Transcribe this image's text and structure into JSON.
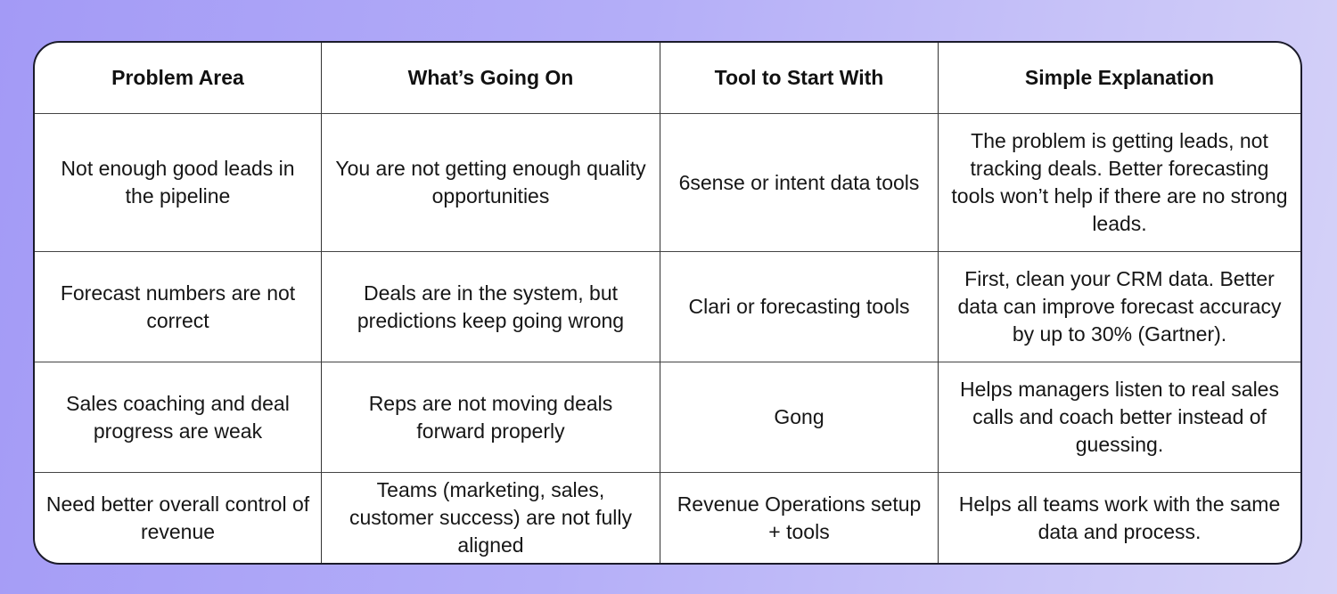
{
  "table": {
    "headers": [
      "Problem Area",
      "What’s Going On",
      "Tool to Start With",
      "Simple Explanation"
    ],
    "rows": [
      [
        "Not enough good leads in the pipeline",
        "You are not getting enough quality opportunities",
        "6sense or intent data tools",
        "The problem is getting leads, not tracking deals. Better forecasting tools won’t help if there are no strong leads."
      ],
      [
        "Forecast numbers are not correct",
        "Deals are in the system, but predictions keep going wrong",
        "Clari or forecasting tools",
        "First, clean your CRM data. Better data can improve forecast accuracy by up to 30% (Gartner)."
      ],
      [
        "Sales coaching and deal progress are weak",
        "Reps are not moving deals forward properly",
        "Gong",
        "Helps managers listen to real sales calls and coach better instead of guessing."
      ],
      [
        "Need better overall control of revenue",
        "Teams (marketing, sales, customer success) are not fully aligned",
        "Revenue Operations setup + tools",
        "Helps all teams work with the same data and process."
      ]
    ]
  },
  "colors": {
    "background_left": "#a39af6",
    "background_right": "#d6d3f8",
    "border": "#1b1b2a"
  }
}
